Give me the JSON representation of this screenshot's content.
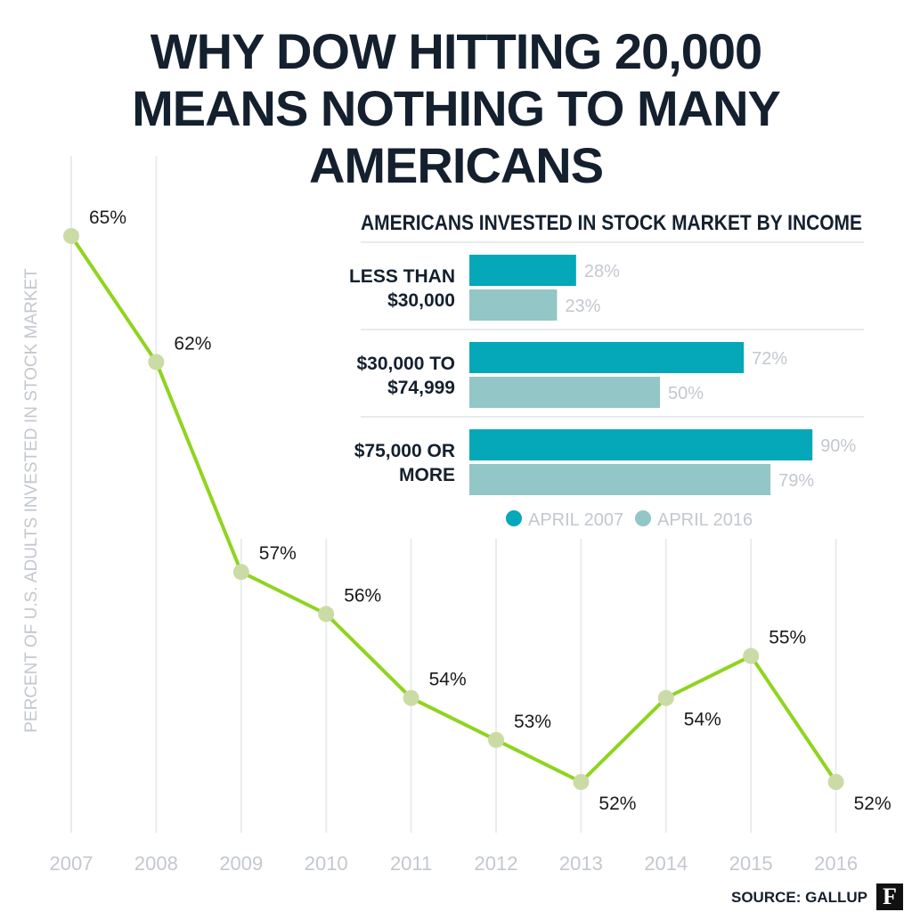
{
  "title_lines": [
    "WHY DOW HITTING 20,000",
    "MEANS NOTHING TO MANY AMERICANS"
  ],
  "source": "SOURCE: GALLUP",
  "logo": "F",
  "colors": {
    "line": "#8fd41e",
    "marker": "#cbdba6",
    "bar_2007": "#05a8b8",
    "bar_2016": "#93c6c6",
    "title": "#14202e",
    "axis_text": "#c3c8cf"
  },
  "chart_data": [
    {
      "type": "line",
      "title": "",
      "xlabel": "",
      "ylabel": "PERCENT OF U.S. ADULTS INVESTED IN STOCK MARKET",
      "x": [
        "2007",
        "2008",
        "2009",
        "2010",
        "2011",
        "2012",
        "2013",
        "2014",
        "2015",
        "2016"
      ],
      "series": [
        {
          "values": [
            65,
            62,
            57,
            56,
            54,
            53,
            52,
            54,
            55,
            52
          ]
        }
      ],
      "point_labels": [
        "65%",
        "62%",
        "57%",
        "56%",
        "54%",
        "53%",
        "52%",
        "54%",
        "55%",
        "52%"
      ],
      "label_position": [
        "above",
        "above",
        "above",
        "above",
        "above",
        "above",
        "below",
        "below",
        "above",
        "below"
      ],
      "grid": "vertical",
      "legend": "none"
    },
    {
      "type": "bar",
      "orientation": "horizontal",
      "title": "AMERICANS INVESTED IN STOCK MARKET BY INCOME",
      "categories": [
        [
          "LESS THAN",
          "$30,000"
        ],
        [
          "$30,000 TO",
          "$74,999"
        ],
        [
          "$75,000 OR",
          "MORE"
        ]
      ],
      "series": [
        {
          "name": "APRIL 2007",
          "values": [
            28,
            72,
            90
          ],
          "labels": [
            "28%",
            "72%",
            "90%"
          ]
        },
        {
          "name": "APRIL 2016",
          "values": [
            23,
            50,
            79
          ],
          "labels": [
            "23%",
            "50%",
            "79%"
          ]
        }
      ],
      "xlim": [
        0,
        100
      ],
      "legend": "bottom"
    }
  ]
}
